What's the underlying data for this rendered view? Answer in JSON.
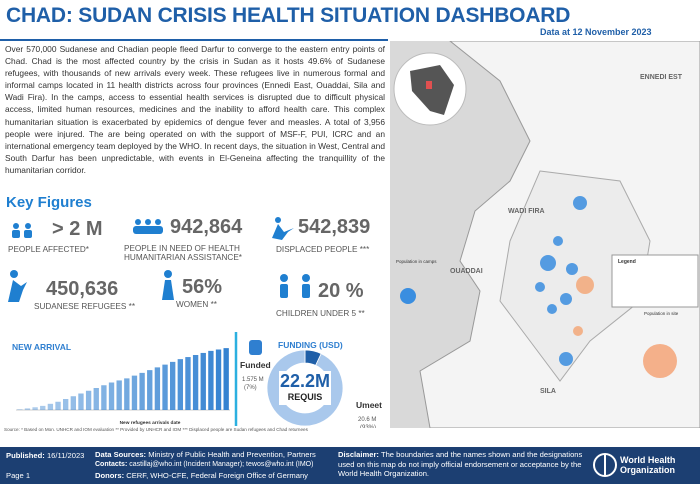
{
  "header": {
    "title": "CHAD: SUDAN CRISIS HEALTH SITUATION DASHBOARD",
    "date": "Data at 12 November 2023"
  },
  "intro": "Over 570,000 Sudanese and Chadian people fleed Darfur to converge to the eastern entry points of Chad. Chad is the most affected country by the crisis in Sudan as it hosts 49.6% of Sudanese refugees, with thousands of new arrivals every week. These refugees live in numerous formal and informal camps located in 11 health districts across four provinces (Ennedi East, Ouaddai, Sila and Wadi Fira). In the camps, access to essential health services is disrupted due to difficult physical access, limited human resources, medicines and the inability to afford health care. This complex humanitarian situation is exacerbated by epidemics of dengue fever and measles. A total of 3,956 people were injured. The are being operated on with the support of MSF-F, PUI, ICRC and an international emergency team deployed by the WHO. In recent days, the situation in West, Central and South Darfur has been unpredictable, with events in El-Geneina affecting the tranquillity of the humanitarian corridor.",
  "key_figures": {
    "title": "Key Figures",
    "items": [
      {
        "value": "> 2 M",
        "label": "PEOPLE AFFECTED*"
      },
      {
        "value": "942,864",
        "label": "PEOPLE IN NEED OF HEALTH HUMANITARIAN ASSISTANCE*"
      },
      {
        "value": "542,839",
        "label": "DISPLACED PEOPLE ***"
      },
      {
        "value": "450,636",
        "label": "SUDANESE REFUGEES **"
      },
      {
        "value": "56%",
        "label": "WOMEN **"
      },
      {
        "value": "20 %",
        "label": "CHILDREN UNDER 5 **"
      }
    ]
  },
  "chart_data": [
    {
      "type": "bar",
      "title": "NEW ARRIVAL",
      "x_label": "New refugees arrivals date",
      "color": "#2f7fd0",
      "values": [
        5000,
        12000,
        20000,
        30000,
        45000,
        60000,
        80000,
        100000,
        120000,
        140000,
        160000,
        180000,
        200000,
        215000,
        230000,
        250000,
        270000,
        290000,
        310000,
        330000,
        350000,
        370000,
        385000,
        400000,
        415000,
        430000,
        440000,
        450000
      ],
      "ylim": [
        0,
        480000
      ]
    },
    {
      "type": "pie",
      "title": "FUNDING (USD)",
      "categories": [
        "Funded",
        "Umeet"
      ],
      "values": [
        7,
        93
      ],
      "value_labels": [
        "(7%)",
        "(93%)"
      ],
      "amounts": [
        "1.575 M",
        "20.6 M"
      ],
      "colors": [
        "#1f5fa8",
        "#a9c8ec"
      ],
      "center_value": "22.2M",
      "center_label": "REQUIS"
    }
  ],
  "map": {
    "labels": [
      "ENNEDI EST",
      "WADI FIRA",
      "OUADDAI",
      "SILA",
      "Population in camps",
      "Population in site",
      "Legend"
    ]
  },
  "footnote": "Source: * Based on Mon. UNHCR and IOM evaluation     ** Provided by UNHCR and IOM     *** Displaced people are Sudan refugees and Chad returnees",
  "footer": {
    "published_label": "Published:",
    "published": "16/11/2023",
    "page": "Page 1",
    "sources_label": "Data Sources:",
    "sources": "Ministry of Public Health and Prevention, Partners",
    "contacts_label": "Contacts:",
    "contacts": "castillaj@who.int (Incident Manager);  tewos@who.int (IMO)",
    "donors_label": "Donors:",
    "donors": "CERF, WHO-CFE, Federal Foreign Office of Germany",
    "disclaimer_label": "Disclaimer:",
    "disclaimer": "The boundaries and the names shown and the designations used on this map do not imply official endorsement or acceptance by the World Health Organization.",
    "org": "World Health Organization"
  }
}
